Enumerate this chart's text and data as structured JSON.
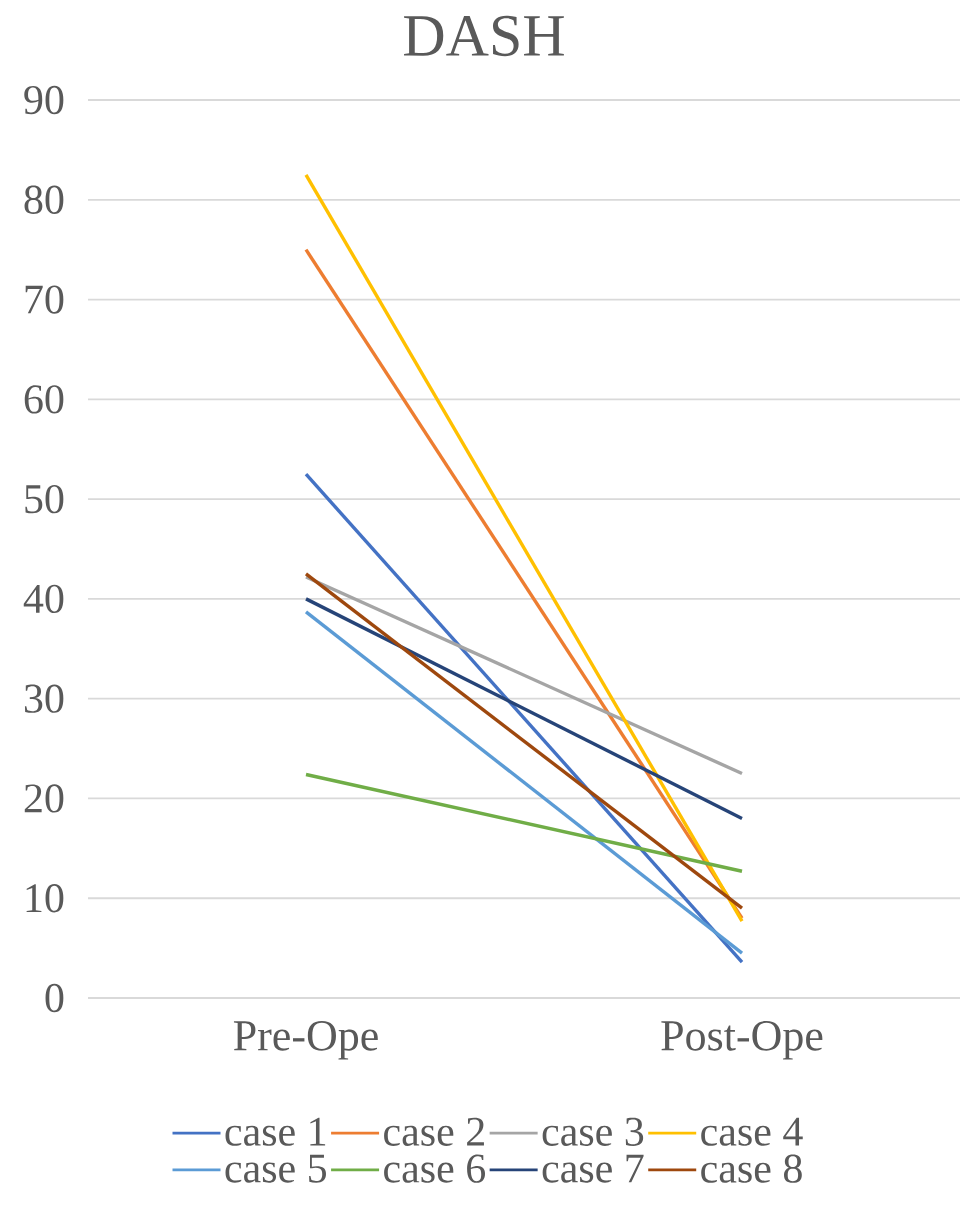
{
  "chart_data": {
    "type": "line",
    "title": "DASH",
    "categories": [
      "Pre-Ope",
      "Post-Ope"
    ],
    "series": [
      {
        "name": "case 1",
        "color": "#4472c4",
        "values": [
          52.5,
          3.6
        ]
      },
      {
        "name": "case 2",
        "color": "#ed7d31",
        "values": [
          75,
          8
        ]
      },
      {
        "name": "case 3",
        "color": "#a5a5a5",
        "values": [
          42.2,
          22.5
        ]
      },
      {
        "name": "case 4",
        "color": "#ffc000",
        "values": [
          82.5,
          7.7
        ]
      },
      {
        "name": "case 5",
        "color": "#5b9bd5",
        "values": [
          38.7,
          4.5
        ]
      },
      {
        "name": "case 6",
        "color": "#70ad47",
        "values": [
          22.4,
          12.7
        ]
      },
      {
        "name": "case 7",
        "color": "#264478",
        "values": [
          40,
          18
        ]
      },
      {
        "name": "case 8",
        "color": "#9e480e",
        "values": [
          42.5,
          9
        ]
      }
    ],
    "ylim": [
      0,
      90
    ],
    "yticks": [
      0,
      10,
      20,
      30,
      40,
      50,
      60,
      70,
      80,
      90
    ],
    "grid": "y",
    "legend": "bottom"
  }
}
